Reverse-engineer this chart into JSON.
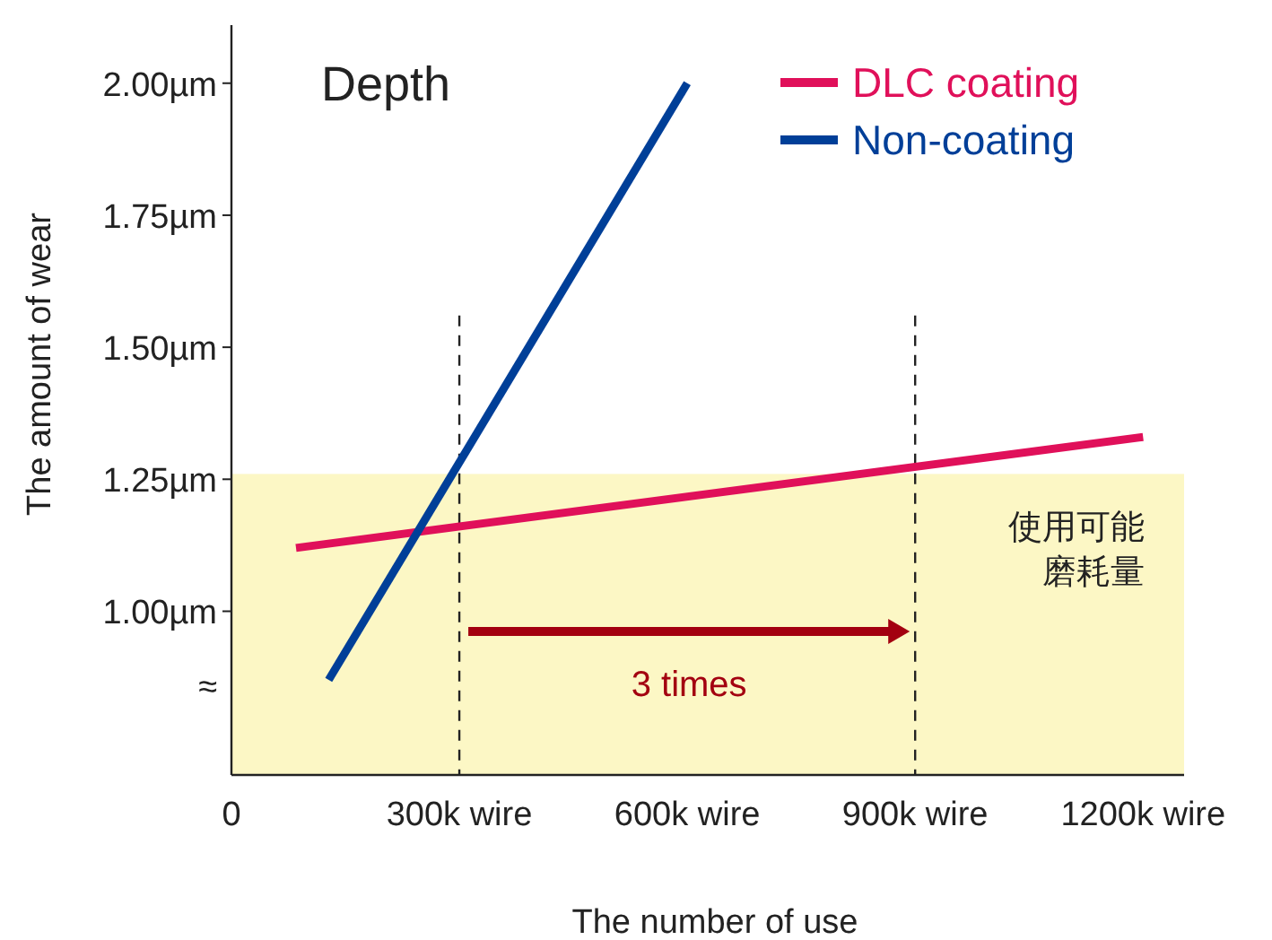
{
  "chart_data": {
    "type": "line",
    "title": "Depth",
    "xlabel": "The number of use",
    "ylabel": "The amount of wear",
    "xlim": [
      0,
      1254
    ],
    "ylim": [
      0.69,
      2.11
    ],
    "xticks": [
      0,
      {
        "value": 300,
        "label": "300k wire"
      },
      {
        "value": 600,
        "label": "600k wire"
      },
      {
        "value": 900,
        "label": "900k wire"
      },
      {
        "value": 1200,
        "label": "1200k wire"
      }
    ],
    "yticks": [
      {
        "value": 0.86,
        "label": "≈"
      },
      {
        "value": 1.0,
        "label": "1.00µm"
      },
      {
        "value": 1.25,
        "label": "1.25µm"
      },
      {
        "value": 1.5,
        "label": "1.50µm"
      },
      {
        "value": 1.75,
        "label": "1.75µm"
      },
      {
        "value": 2.0,
        "label": "2.00µm"
      }
    ],
    "series": [
      {
        "name": "DLC coating",
        "color": "#e0105a",
        "x": [
          85,
          1200
        ],
        "values": [
          1.12,
          1.33
        ]
      },
      {
        "name": "Non-coating",
        "color": "#003f98",
        "x": [
          128,
          600
        ],
        "values": [
          0.87,
          2.0
        ]
      }
    ],
    "bands": [
      {
        "axis": "y",
        "from": 0.69,
        "to": 1.26,
        "label": "使用可能磨耗量",
        "color": "#fcf7c5"
      }
    ],
    "ref_lines": [
      {
        "axis": "x",
        "value": 300,
        "line_style": "dashed",
        "color": "#222222"
      },
      {
        "axis": "x",
        "value": 900,
        "line_style": "dashed",
        "color": "#222222"
      }
    ],
    "annotations": [
      "3 times"
    ],
    "legend": "top right",
    "grid": false,
    "marker": "none",
    "line_style": "solid"
  }
}
